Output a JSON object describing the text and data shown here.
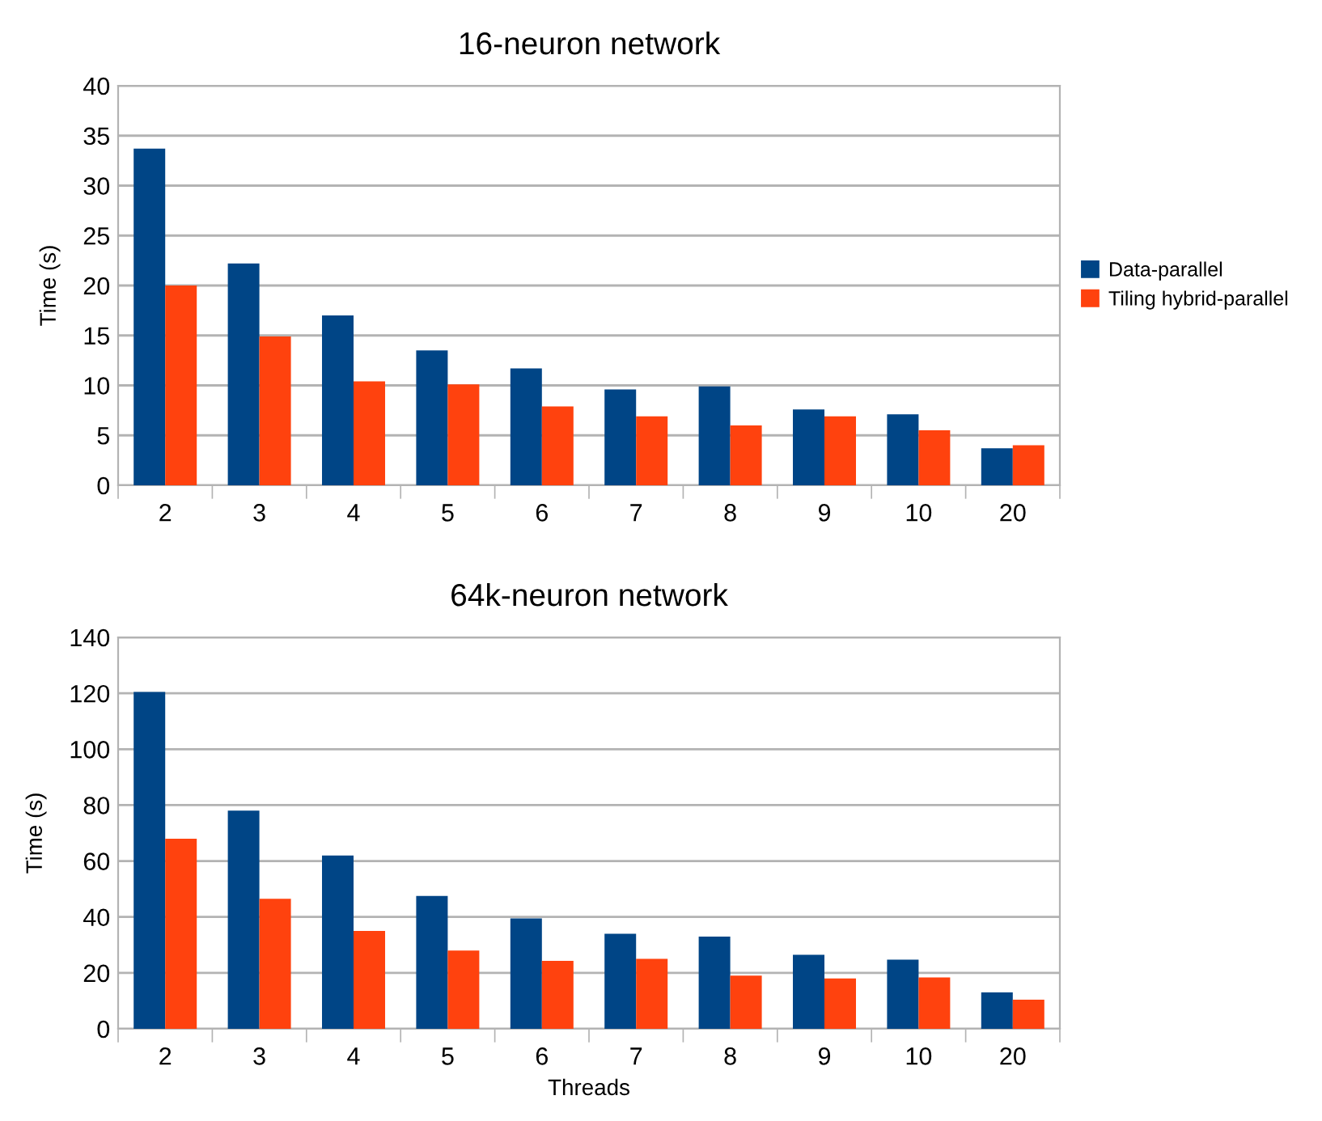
{
  "chart_data": [
    {
      "type": "bar",
      "title": "16-neuron network",
      "ylabel": "Time (s)",
      "categories": [
        "2",
        "3",
        "4",
        "5",
        "6",
        "7",
        "8",
        "9",
        "10",
        "20"
      ],
      "series": [
        {
          "name": "Data-parallel",
          "color": "#004586",
          "values": [
            33.7,
            22.2,
            17,
            13.5,
            11.7,
            9.6,
            9.9,
            7.6,
            7.1,
            3.7
          ]
        },
        {
          "name": "Tiling hybrid-parallel",
          "color": "#ff420e",
          "values": [
            20,
            14.9,
            10.4,
            10.1,
            7.9,
            6.9,
            6,
            6.9,
            5.5,
            4
          ]
        }
      ],
      "ylim": [
        0,
        40
      ],
      "yticks": [
        0,
        5,
        10,
        15,
        20,
        25,
        30,
        35,
        40
      ],
      "grid": "y",
      "legend": "right"
    },
    {
      "type": "bar",
      "title": "64k-neuron network",
      "xlabel": "Threads",
      "ylabel": "Time (s)",
      "categories": [
        "2",
        "3",
        "4",
        "5",
        "6",
        "7",
        "8",
        "9",
        "10",
        "20"
      ],
      "series": [
        {
          "color": "#004586",
          "values": [
            120.5,
            78,
            62,
            47.5,
            39.5,
            34,
            33,
            26.5,
            24.7,
            13
          ]
        },
        {
          "color": "#ff420e",
          "values": [
            68,
            46.5,
            35,
            28,
            24.3,
            25,
            19,
            18,
            18.4,
            10.4
          ]
        }
      ],
      "ylim": [
        0,
        140
      ],
      "yticks": [
        0,
        20,
        40,
        60,
        80,
        100,
        120,
        140
      ],
      "grid": "y"
    }
  ]
}
